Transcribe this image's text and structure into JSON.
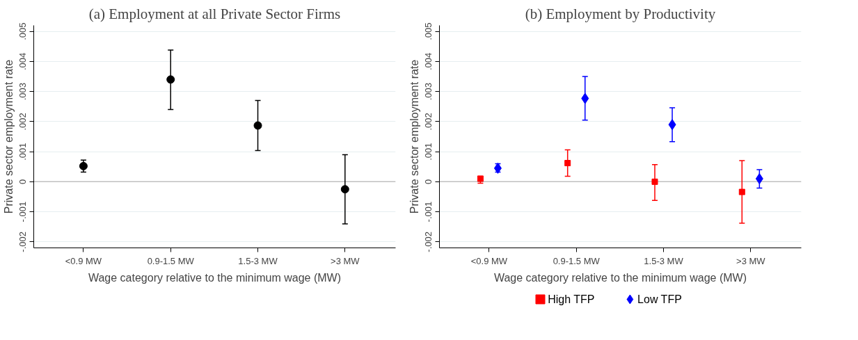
{
  "chart_data": [
    {
      "type": "scatter",
      "title": "(a) Employment at all Private Sector Firms",
      "xlabel": "Wage category relative to the minimum wage (MW)",
      "ylabel": "Private sector employment rate",
      "categories": [
        "<0.9 MW",
        "0.9-1.5 MW",
        "1.5-3 MW",
        ">3 MW"
      ],
      "series": [
        {
          "color": "#000000",
          "marker": "circle",
          "values": [
            0.00052,
            0.0034,
            0.00187,
            -0.00025
          ],
          "errors": [
            [
              0.00032,
              0.00072
            ],
            [
              0.0024,
              0.00438
            ],
            [
              0.00104,
              0.0027
            ],
            [
              -0.0014,
              0.0009
            ]
          ]
        }
      ],
      "ylim": [
        -0.0022,
        0.0052
      ],
      "yticks": [
        {
          "value": -0.002,
          "label": "-.002"
        },
        {
          "value": -0.001,
          "label": "-.001"
        },
        0,
        {
          "value": 0.001,
          "label": ".001"
        },
        {
          "value": 0.002,
          "label": ".002"
        },
        {
          "value": 0.003,
          "label": ".003"
        },
        {
          "value": 0.004,
          "label": ".004"
        },
        {
          "value": 0.005,
          "label": ".005"
        }
      ],
      "grid": "y",
      "ref_lines": [
        {
          "axis": "y",
          "value": 0,
          "color": "#c0c0c0"
        }
      ]
    },
    {
      "type": "scatter",
      "title": "(b) Employment by Productivity",
      "xlabel": "Wage category relative to the minimum wage (MW)",
      "ylabel": "Private sector employment rate",
      "categories": [
        "<0.9 MW",
        "0.9-1.5 MW",
        "1.5-3 MW",
        ">3 MW"
      ],
      "series": [
        {
          "name": "High TFP",
          "color": "#ff0000",
          "marker": "square",
          "values": [
            0.0001,
            0.00062,
            0,
            -0.00034
          ],
          "errors": [
            [
              -5e-05,
              0.00018
            ],
            [
              0.00018,
              0.00106
            ],
            [
              -0.00062,
              0.00057
            ],
            [
              -0.00138,
              0.0007
            ]
          ]
        },
        {
          "name": "Low TFP",
          "color": "#0000ff",
          "marker": "diamond",
          "values": [
            0.00045,
            0.00277,
            0.0019,
            0.0001
          ],
          "errors": [
            [
              0.00032,
              0.0006
            ],
            [
              0.00205,
              0.0035
            ],
            [
              0.00133,
              0.00246
            ],
            [
              -0.00021,
              0.0004
            ]
          ]
        }
      ],
      "ylim": [
        -0.0022,
        0.0052
      ],
      "yticks": [
        {
          "value": -0.002,
          "label": "-.002"
        },
        {
          "value": -0.001,
          "label": "-.001"
        },
        0,
        {
          "value": 0.001,
          "label": ".001"
        },
        {
          "value": 0.002,
          "label": ".002"
        },
        {
          "value": 0.003,
          "label": ".003"
        },
        {
          "value": 0.004,
          "label": ".004"
        },
        {
          "value": 0.005,
          "label": ".005"
        }
      ],
      "grid": "y",
      "legend": "bottom",
      "ref_lines": [
        {
          "axis": "y",
          "value": 0,
          "color": "#c0c0c0"
        }
      ]
    }
  ]
}
